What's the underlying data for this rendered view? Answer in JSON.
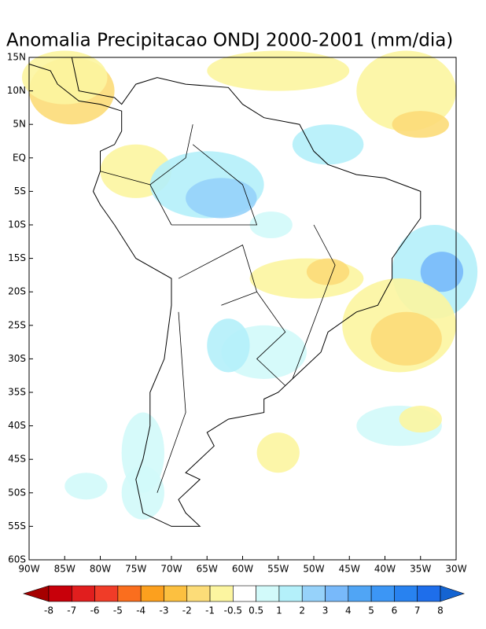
{
  "chart_data": {
    "type": "contour-map",
    "title": "Anomalia Precipitacao ONDJ 2000-2001 (mm/dia)",
    "xlim": [
      -90,
      -30
    ],
    "ylim": [
      -60,
      15
    ],
    "xticks": [
      {
        "value": -90,
        "label": "90W"
      },
      {
        "value": -85,
        "label": "85W"
      },
      {
        "value": -80,
        "label": "80W"
      },
      {
        "value": -75,
        "label": "75W"
      },
      {
        "value": -70,
        "label": "70W"
      },
      {
        "value": -65,
        "label": "65W"
      },
      {
        "value": -60,
        "label": "60W"
      },
      {
        "value": -55,
        "label": "55W"
      },
      {
        "value": -50,
        "label": "50W"
      },
      {
        "value": -45,
        "label": "45W"
      },
      {
        "value": -40,
        "label": "40W"
      },
      {
        "value": -35,
        "label": "35W"
      },
      {
        "value": -30,
        "label": "30W"
      }
    ],
    "yticks": [
      {
        "value": 15,
        "label": "15N"
      },
      {
        "value": 10,
        "label": "10N"
      },
      {
        "value": 5,
        "label": "5N"
      },
      {
        "value": 0,
        "label": "EQ"
      },
      {
        "value": -5,
        "label": "5S"
      },
      {
        "value": -10,
        "label": "10S"
      },
      {
        "value": -15,
        "label": "15S"
      },
      {
        "value": -20,
        "label": "20S"
      },
      {
        "value": -25,
        "label": "25S"
      },
      {
        "value": -30,
        "label": "30S"
      },
      {
        "value": -35,
        "label": "35S"
      },
      {
        "value": -40,
        "label": "40S"
      },
      {
        "value": -45,
        "label": "45S"
      },
      {
        "value": -50,
        "label": "50S"
      },
      {
        "value": -55,
        "label": "55S"
      },
      {
        "value": -60,
        "label": "60S"
      }
    ],
    "levels": [
      -8,
      -7,
      -6,
      -5,
      -4,
      -3,
      -2,
      -1,
      -0.5,
      0.5,
      1,
      2,
      3,
      4,
      5,
      6,
      7,
      8
    ],
    "colors": [
      "#a50000",
      "#c8000a",
      "#e11e1e",
      "#f03c28",
      "#fa6e1e",
      "#fca01e",
      "#fcc040",
      "#fcdc78",
      "#fcf5a0",
      "#ffffff",
      "#d2fafa",
      "#b4f0fa",
      "#96d2fa",
      "#78b9fa",
      "#50a5f5",
      "#3c96f5",
      "#2882f0",
      "#1e6eeb",
      "#1464d2"
    ]
  }
}
